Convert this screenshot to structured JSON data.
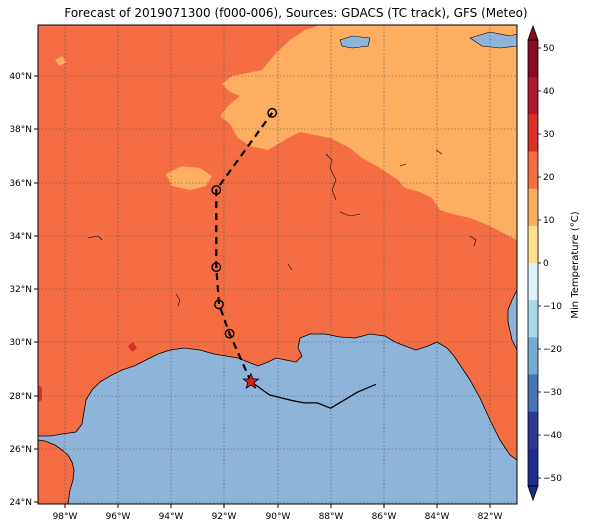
{
  "title": "Forecast of 2019071300 (f000-006), Sources: GDACS (TC track), GFS (Meteo)",
  "map": {
    "lon_range": [
      -99,
      -81
    ],
    "lat_range": [
      24,
      42
    ],
    "xtick_labels": [
      "98°W",
      "96°W",
      "94°W",
      "92°W",
      "90°W",
      "88°W",
      "86°W",
      "84°W",
      "82°W"
    ],
    "ytick_labels": [
      "24°N",
      "26°N",
      "28°N",
      "30°N",
      "32°N",
      "34°N",
      "36°N",
      "38°N",
      "40°N"
    ],
    "gridlines": true,
    "colors": {
      "ocean": "#8fb4d9",
      "temp_20_30": "#f46d43",
      "temp_10_20": "#fdae61",
      "temp_30_40": "#d73027"
    }
  },
  "colorbar": {
    "label": "Min Temperature (°C)",
    "ticks": [
      "50",
      "40",
      "30",
      "20",
      "10",
      "0",
      "−10",
      "−20",
      "−30",
      "−40",
      "−50"
    ],
    "colors": [
      "#8b0a26",
      "#b2182b",
      "#d73027",
      "#f46d43",
      "#fdae61",
      "#fee090",
      "#e0f3f8",
      "#abd9e9",
      "#74add1",
      "#4575b4",
      "#313695",
      "#1b2f8a"
    ]
  },
  "track": {
    "points": [
      {
        "lon": -91.0,
        "lat": 28.6
      },
      {
        "lon": -91.8,
        "lat": 30.4
      },
      {
        "lon": -92.2,
        "lat": 31.5
      },
      {
        "lon": -92.3,
        "lat": 32.9
      },
      {
        "lon": -92.3,
        "lat": 35.8
      },
      {
        "lon": -90.2,
        "lat": 38.7
      }
    ],
    "current_marker": "star-icon",
    "observed_path": [
      {
        "lon": -91.0,
        "lat": 28.6
      },
      {
        "lon": -90.3,
        "lat": 28.1
      },
      {
        "lon": -89.5,
        "lat": 27.9
      },
      {
        "lon": -89.0,
        "lat": 27.8
      },
      {
        "lon": -88.5,
        "lat": 27.8
      },
      {
        "lon": -88.0,
        "lat": 27.6
      },
      {
        "lon": -87.5,
        "lat": 27.9
      },
      {
        "lon": -87.0,
        "lat": 28.2
      },
      {
        "lon": -86.3,
        "lat": 28.5
      }
    ]
  }
}
